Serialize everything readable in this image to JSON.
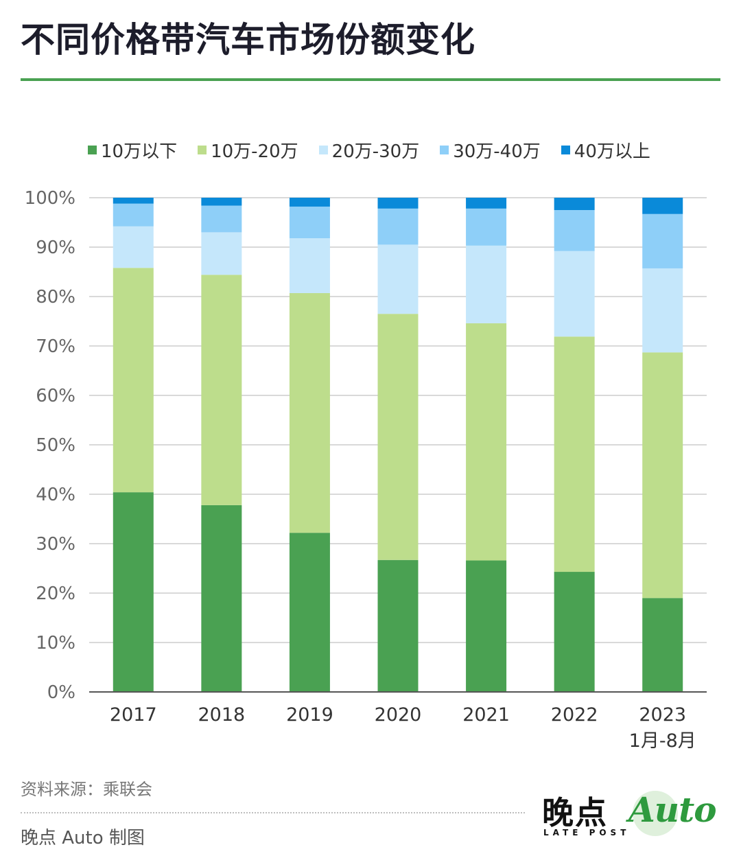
{
  "title": "不同价格带汽车市场份额变化",
  "source": "资料来源：乘联会",
  "credit": "晚点 Auto 制图",
  "logo": {
    "cn": "晚点",
    "en": "LATE POST",
    "auto": "Auto"
  },
  "colors": {
    "accent": "#4aa152",
    "grid": "#d9d9d9",
    "axis": "#555555"
  },
  "chart_data": {
    "type": "bar",
    "stacked": true,
    "title": "不同价格带汽车市场份额变化",
    "categories": [
      [
        "2017"
      ],
      [
        "2018"
      ],
      [
        "2019"
      ],
      [
        "2020"
      ],
      [
        "2021"
      ],
      [
        "2022"
      ],
      [
        "2023",
        "1月-8月"
      ]
    ],
    "yticks": [
      "0%",
      "10%",
      "20%",
      "30%",
      "40%",
      "50%",
      "60%",
      "70%",
      "80%",
      "90%",
      "100%"
    ],
    "ylim": [
      0,
      100
    ],
    "grid": true,
    "legend_position": "top",
    "series": [
      {
        "name": "10万以下",
        "color": "#4aa152",
        "values": [
          40.4,
          37.8,
          32.2,
          26.7,
          26.6,
          24.3,
          19.0
        ]
      },
      {
        "name": "10万-20万",
        "color": "#bddd8c",
        "values": [
          45.4,
          46.6,
          48.5,
          49.8,
          48.0,
          47.6,
          49.7
        ]
      },
      {
        "name": "20万-30万",
        "color": "#c5e7fb",
        "values": [
          8.4,
          8.6,
          11.1,
          14.0,
          15.7,
          17.3,
          17.0
        ]
      },
      {
        "name": "30万-40万",
        "color": "#8ecff8",
        "values": [
          4.6,
          5.4,
          6.4,
          7.3,
          7.5,
          8.3,
          11.0
        ]
      },
      {
        "name": "40万以上",
        "color": "#0a8ad9",
        "values": [
          1.2,
          1.6,
          1.8,
          2.2,
          2.2,
          2.5,
          3.3
        ]
      }
    ]
  }
}
